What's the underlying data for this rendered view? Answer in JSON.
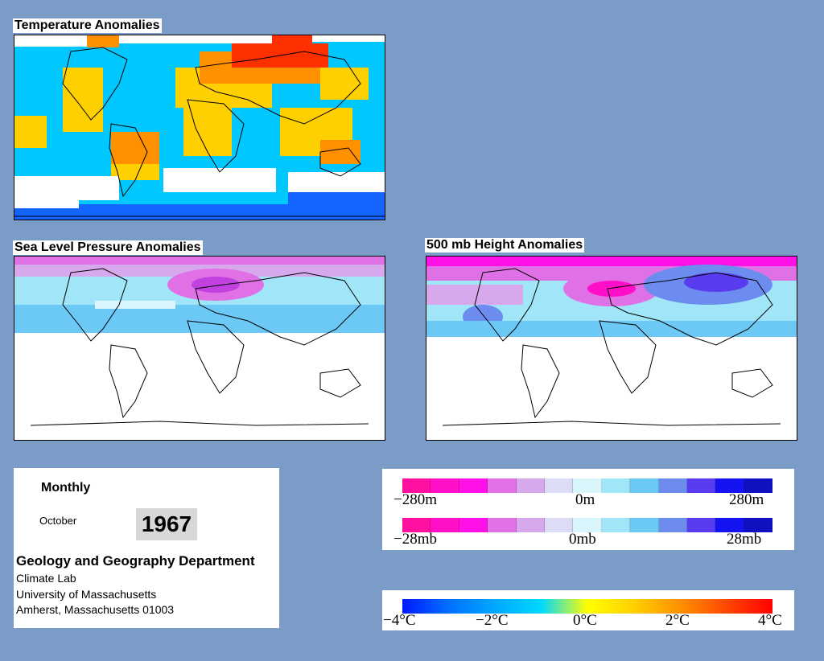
{
  "panels": {
    "temperature": {
      "title": "Temperature Anomalies"
    },
    "pressure": {
      "title": "Sea Level Pressure Anomalies"
    },
    "height": {
      "title": "500 mb Height Anomalies"
    }
  },
  "info": {
    "period": "Monthly",
    "month": "October",
    "year": "1967",
    "department": "Geology and Geography Department",
    "lab": "Climate Lab",
    "university": "University of Massachusetts",
    "address": "Amherst, Massachusetts 01003"
  },
  "legends": {
    "height": {
      "colors": [
        "#ff10a0",
        "#ff10c8",
        "#ff10e6",
        "#e070e6",
        "#d8a8ec",
        "#dcdcf6",
        "#d8f6fc",
        "#a0e6f8",
        "#6cc8f4",
        "#6c8cf0",
        "#5a3cf0",
        "#1414f0",
        "#1010c0"
      ],
      "labels": [
        "−280m",
        "0m",
        "280m"
      ]
    },
    "pressure": {
      "colors": [
        "#ff10a0",
        "#ff10c8",
        "#ff10e6",
        "#e070e6",
        "#d8a8ec",
        "#dcdcf6",
        "#d8f6fc",
        "#a0e6f8",
        "#6cc8f4",
        "#6c8cf0",
        "#5a3cf0",
        "#1414f0",
        "#1010c0"
      ],
      "labels": [
        "−28mb",
        "0mb",
        "28mb"
      ]
    },
    "temperature": {
      "colors": [
        "#0018ff",
        "#0070ff",
        "#00a8ff",
        "#00d8ff",
        "#ffff00",
        "#ffd000",
        "#ff9000",
        "#ff4800",
        "#ff0000"
      ],
      "labels": [
        "−4°C",
        "−2°C",
        "0°C",
        "2°C",
        "4°C"
      ]
    }
  }
}
